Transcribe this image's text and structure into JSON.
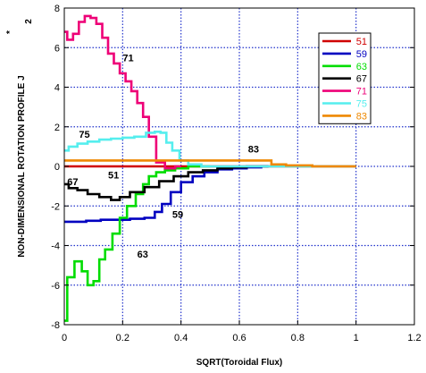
{
  "chart_data": {
    "type": "line",
    "xlabel": "SQRT(Toroidal Flux)",
    "ylabel": "NON-DIMENSIONAL ROTATION PROFILE J",
    "ylabel_superscript": "*",
    "ylabel_subscript": "2",
    "xlim": [
      0,
      1.2
    ],
    "ylim": [
      -8,
      8
    ],
    "xticks": [
      0,
      0.2,
      0.4,
      0.6,
      0.8,
      1,
      1.2
    ],
    "xtick_labels": [
      "0",
      "0.2",
      "0.4",
      "0.6",
      "0.8",
      "1",
      "1.2"
    ],
    "yticks": [
      -8,
      -6,
      -4,
      -2,
      0,
      2,
      4,
      6,
      8
    ],
    "ytick_labels": [
      "-8",
      "-6",
      "-4",
      "-2",
      "0",
      "2",
      "4",
      "6",
      "8"
    ],
    "grid": true,
    "grid_style": "dotted blue",
    "legend_position": "top-right",
    "series": [
      {
        "name": "51",
        "color": "#d00000",
        "x": [
          0,
          0.1,
          0.2,
          0.3,
          0.4,
          0.5,
          0.6,
          0.7,
          0.8,
          0.9,
          1.0
        ],
        "y": [
          0.0,
          0.0,
          0.0,
          0.0,
          0.0,
          0.0,
          0.0,
          0.0,
          0.0,
          0.0,
          0.0
        ]
      },
      {
        "name": "59",
        "color": "#0000c0",
        "x": [
          0,
          0.05,
          0.1,
          0.15,
          0.2,
          0.25,
          0.3,
          0.32,
          0.35,
          0.38,
          0.42,
          0.46,
          0.5,
          0.55,
          0.6,
          0.65,
          0.7
        ],
        "y": [
          -2.8,
          -2.8,
          -2.75,
          -2.7,
          -2.7,
          -2.65,
          -2.6,
          -2.3,
          -1.9,
          -1.3,
          -0.8,
          -0.5,
          -0.3,
          -0.15,
          -0.1,
          -0.05,
          0.0
        ]
      },
      {
        "name": "63",
        "color": "#00dd00",
        "x": [
          0,
          0.02,
          0.05,
          0.07,
          0.09,
          0.11,
          0.13,
          0.15,
          0.18,
          0.2,
          0.23,
          0.26,
          0.28,
          0.3,
          0.33,
          0.36,
          0.4,
          0.45,
          0.5
        ],
        "y": [
          -7.8,
          -5.6,
          -4.8,
          -5.3,
          -6.0,
          -5.8,
          -4.7,
          -4.2,
          -3.4,
          -2.6,
          -2.0,
          -1.4,
          -0.9,
          -0.5,
          -0.3,
          -0.2,
          -0.1,
          0.0,
          0.0
        ]
      },
      {
        "name": "67",
        "color": "#000000",
        "x": [
          0,
          0.03,
          0.06,
          0.1,
          0.14,
          0.18,
          0.2,
          0.25,
          0.3,
          0.35,
          0.4,
          0.45,
          0.5,
          0.55,
          0.6,
          0.65,
          0.7
        ],
        "y": [
          -0.9,
          -1.1,
          -1.2,
          -1.4,
          -1.55,
          -1.7,
          -1.55,
          -1.3,
          -1.05,
          -0.75,
          -0.5,
          -0.3,
          -0.2,
          -0.1,
          -0.05,
          0.0,
          0.0
        ]
      },
      {
        "name": "71",
        "color": "#ee0077",
        "x": [
          0,
          0.02,
          0.04,
          0.06,
          0.08,
          0.1,
          0.12,
          0.14,
          0.16,
          0.18,
          0.2,
          0.22,
          0.24,
          0.26,
          0.28,
          0.3,
          0.33,
          0.36,
          0.4
        ],
        "y": [
          6.8,
          6.4,
          6.7,
          7.3,
          7.6,
          7.5,
          7.2,
          6.5,
          5.7,
          5.2,
          4.7,
          4.3,
          3.8,
          3.2,
          2.5,
          1.5,
          0.2,
          -0.1,
          0.0
        ]
      },
      {
        "name": "75",
        "color": "#55eeee",
        "x": [
          0,
          0.03,
          0.06,
          0.1,
          0.14,
          0.18,
          0.22,
          0.26,
          0.3,
          0.32,
          0.34,
          0.36,
          0.38,
          0.41,
          0.44,
          0.5,
          0.6,
          0.7,
          0.8,
          0.9,
          1.0
        ],
        "y": [
          0.8,
          1.0,
          1.15,
          1.25,
          1.35,
          1.4,
          1.45,
          1.5,
          1.7,
          1.75,
          1.7,
          1.2,
          0.8,
          0.3,
          0.1,
          0.0,
          0.0,
          0.0,
          0.0,
          0.0,
          0.0
        ]
      },
      {
        "name": "83",
        "color": "#ee8800",
        "x": [
          0,
          0.1,
          0.2,
          0.3,
          0.4,
          0.5,
          0.6,
          0.7,
          0.72,
          0.8,
          0.9,
          1.0
        ],
        "y": [
          0.3,
          0.3,
          0.3,
          0.3,
          0.3,
          0.3,
          0.3,
          0.3,
          0.1,
          0.05,
          0.0,
          0.0
        ]
      }
    ],
    "annotations": [
      {
        "text": "71",
        "x": 0.2,
        "y": 5.3
      },
      {
        "text": "75",
        "x": 0.05,
        "y": 1.45
      },
      {
        "text": "83",
        "x": 0.63,
        "y": 0.7
      },
      {
        "text": "51",
        "x": 0.15,
        "y": -0.6
      },
      {
        "text": "67",
        "x": 0.01,
        "y": -0.95
      },
      {
        "text": "59",
        "x": 0.37,
        "y": -2.6
      },
      {
        "text": "63",
        "x": 0.25,
        "y": -4.6
      }
    ]
  }
}
